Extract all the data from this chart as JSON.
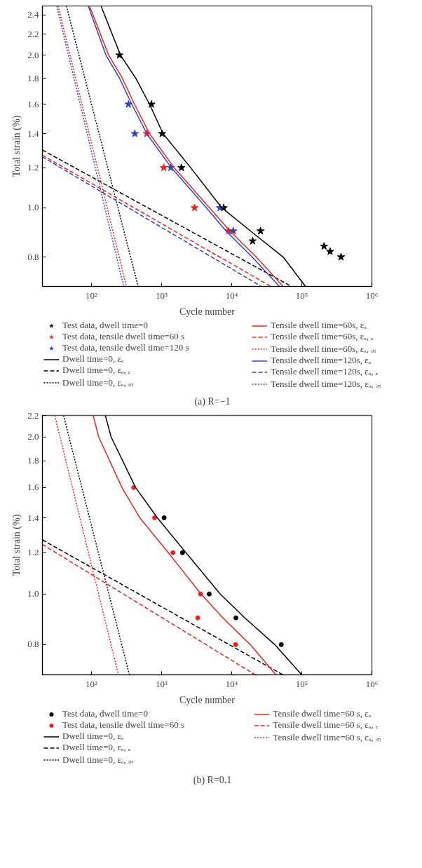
{
  "chart_data": [
    {
      "type": "line",
      "title": "(a) R=−1",
      "xlabel": "Cycle number",
      "ylabel": "Total strain (%)",
      "log": "xy",
      "legend": "bottom",
      "xlim": [
        20,
        1000000
      ],
      "xticks": [
        {
          "value": 100,
          "label": "10²"
        },
        {
          "value": 1000,
          "label": "10³"
        },
        {
          "value": 10000,
          "label": "10⁴"
        },
        {
          "value": 100000,
          "label": "10⁵"
        },
        {
          "value": 1000000,
          "label": "10⁶"
        }
      ],
      "ylim": [
        0.7,
        2.5
      ],
      "yticks": [
        {
          "value": 0.8,
          "label": "0.8"
        },
        {
          "value": 1,
          "label": "1.0"
        },
        {
          "value": 1.2,
          "label": "1.2"
        },
        {
          "value": 1.4,
          "label": "1.4"
        },
        {
          "value": 1.6,
          "label": "1.6"
        },
        {
          "value": 1.8,
          "label": "1.8"
        },
        {
          "value": 2,
          "label": "2.0"
        },
        {
          "value": 2.2,
          "label": "2.2"
        },
        {
          "value": 2.4,
          "label": "2.4"
        }
      ],
      "series": [
        {
          "type": "scatter",
          "marker": "star",
          "name": "Test data, dwell time=0",
          "color": "#000000",
          "x": [
            251,
            718,
            1020,
            1920,
            7700,
            25800,
            19900,
            208000,
            254000,
            363000
          ],
          "values": [
            2.0,
            1.6,
            1.4,
            1.2,
            1.0,
            0.9,
            0.86,
            0.84,
            0.82,
            0.8
          ]
        },
        {
          "type": "scatter",
          "marker": "star",
          "name": "Test data, tensile dwell time=60 s",
          "color": "#ee2222",
          "x": [
            617,
            1075,
            2960,
            9060
          ],
          "values": [
            1.4,
            1.2,
            1.0,
            0.9
          ]
        },
        {
          "type": "scatter",
          "marker": "star",
          "name": "Test data, tensile dwell time=120 s",
          "color": "#3344bb",
          "x": [
            338,
            416,
            1355,
            6810,
            10540
          ],
          "values": [
            1.6,
            1.4,
            1.2,
            1.0,
            0.9
          ]
        },
        {
          "name": "Dwell time=0, εₐ",
          "color": "#000000",
          "line_style": "solid",
          "x": [
            137,
            260,
            430,
            675,
            1055,
            2600,
            7250,
            18600,
            54300,
            113000
          ],
          "values": [
            2.5,
            2.0,
            1.8,
            1.6,
            1.4,
            1.2,
            1.0,
            0.9,
            0.8,
            0.7
          ]
        },
        {
          "name": "Dwell time=0, εₐ, ₑ",
          "color": "#000000",
          "line_style": "dashed",
          "x": [
            20,
            71100
          ],
          "values": [
            1.3,
            0.7
          ]
        },
        {
          "name": "Dwell time=0, εₐ, ᵢₙ",
          "color": "#000000",
          "line_style": "dotted",
          "x": [
            44,
            463
          ],
          "values": [
            2.5,
            0.7
          ]
        },
        {
          "name": "Tensile dwell time=60s, εₐ",
          "color": "#ee2222",
          "line_style": "solid",
          "x": [
            94,
            176,
            277,
            412,
            675,
            1510,
            4840,
            9480,
            22400,
            54300
          ],
          "values": [
            2.5,
            2.0,
            1.8,
            1.6,
            1.4,
            1.2,
            1.0,
            0.9,
            0.8,
            0.7
          ]
        },
        {
          "name": "Tensile dwell time=60s, εₐ, ₑ",
          "color": "#ee2222",
          "line_style": "dashed",
          "x": [
            20,
            36300
          ],
          "values": [
            1.27,
            0.7
          ]
        },
        {
          "name": "Tensile dwell time=60s, εₐ, ᵢₙ",
          "color": "#ee2222",
          "line_style": "dotted",
          "x": [
            33.5,
            315
          ],
          "values": [
            2.5,
            0.7
          ]
        },
        {
          "name": "Tensile dwell time=120s, εₐ",
          "color": "#3344bb",
          "line_style": "solid",
          "x": [
            90,
            161,
            252,
            377,
            616,
            1380,
            4370,
            8320,
            19600,
            48000
          ],
          "values": [
            2.5,
            2.0,
            1.8,
            1.6,
            1.4,
            1.2,
            1.0,
            0.9,
            0.8,
            0.7
          ]
        },
        {
          "name": "Tensile dwell time=120s, εₐ, ₑ",
          "color": "#3344bb",
          "line_style": "dashed",
          "x": [
            20,
            26500
          ],
          "values": [
            1.26,
            0.7
          ]
        },
        {
          "name": "Tensile dwell time=120s, εₐ, ᵢₙ",
          "color": "#3344bb",
          "line_style": "dotted",
          "x": [
            32,
            288
          ],
          "values": [
            2.5,
            0.7
          ]
        }
      ]
    },
    {
      "type": "line",
      "title": "(b) R=0.1",
      "xlabel": "Cycle number",
      "ylabel": "Total strain (%)",
      "log": "xy",
      "legend": "bottom",
      "xlim": [
        20,
        1000000
      ],
      "xticks": [
        {
          "value": 100,
          "label": "10²"
        },
        {
          "value": 1000,
          "label": "10³"
        },
        {
          "value": 10000,
          "label": "10⁴"
        },
        {
          "value": 100000,
          "label": "10⁵"
        },
        {
          "value": 1000000,
          "label": "10⁶"
        }
      ],
      "ylim": [
        0.7,
        2.2
      ],
      "yticks": [
        {
          "value": 0.8,
          "label": "0.8"
        },
        {
          "value": 1,
          "label": "1.0"
        },
        {
          "value": 1.2,
          "label": "1.2"
        },
        {
          "value": 1.4,
          "label": "1.4"
        },
        {
          "value": 1.6,
          "label": "1.6"
        },
        {
          "value": 1.8,
          "label": "1.8"
        },
        {
          "value": 2,
          "label": "2.0"
        },
        {
          "value": 2.2,
          "label": "2.2"
        }
      ],
      "series": [
        {
          "type": "scatter",
          "marker": "circle",
          "name": "Test data, dwell time=0",
          "color": "#000000",
          "x": [
            1090,
            1990,
            4790,
            11500,
            51000
          ],
          "values": [
            1.4,
            1.2,
            1.0,
            0.9,
            0.8
          ]
        },
        {
          "type": "scatter",
          "marker": "circle",
          "name": "Test data, tensile dwell time=60 s",
          "color": "#ee2222",
          "x": [
            401,
            795,
            1455,
            3600,
            3290,
            11400
          ],
          "values": [
            1.6,
            1.4,
            1.2,
            1.0,
            0.9,
            0.8
          ]
        },
        {
          "name": "Dwell time=0, εₐ",
          "color": "#000000",
          "line_style": "solid",
          "x": [
            158,
            191,
            427,
            871,
            2230,
            6870,
            15400,
            41200,
            100000
          ],
          "values": [
            2.2,
            2.0,
            1.6,
            1.4,
            1.2,
            1.0,
            0.9,
            0.8,
            0.7
          ]
        },
        {
          "name": "Dwell time=0, εₐ, ₑ",
          "color": "#000000",
          "line_style": "dashed",
          "x": [
            20,
            54000
          ],
          "values": [
            1.27,
            0.7
          ]
        },
        {
          "name": "Dwell time=0, εₐ, ᵢₙ",
          "color": "#000000",
          "line_style": "dotted",
          "x": [
            40,
            348
          ],
          "values": [
            2.2,
            0.7
          ]
        },
        {
          "name": "Tensile dwell time=60 s, εₐ",
          "color": "#ee2222",
          "line_style": "solid",
          "x": [
            106,
            127,
            273,
            490,
            1250,
            3660,
            7500,
            18400,
            43000
          ],
          "values": [
            2.2,
            2.0,
            1.6,
            1.4,
            1.2,
            1.0,
            0.9,
            0.8,
            0.7
          ]
        },
        {
          "name": "Tensile dwell time=60 s, εₐ, ₑ",
          "color": "#ee2222",
          "line_style": "dashed",
          "x": [
            20,
            21800
          ],
          "values": [
            1.245,
            0.7
          ]
        },
        {
          "name": "Tensile dwell time=60 s, εₐ, ᵢₙ",
          "color": "#ee2222",
          "line_style": "dotted",
          "x": [
            30,
            243
          ],
          "values": [
            2.2,
            0.7
          ]
        }
      ]
    }
  ]
}
